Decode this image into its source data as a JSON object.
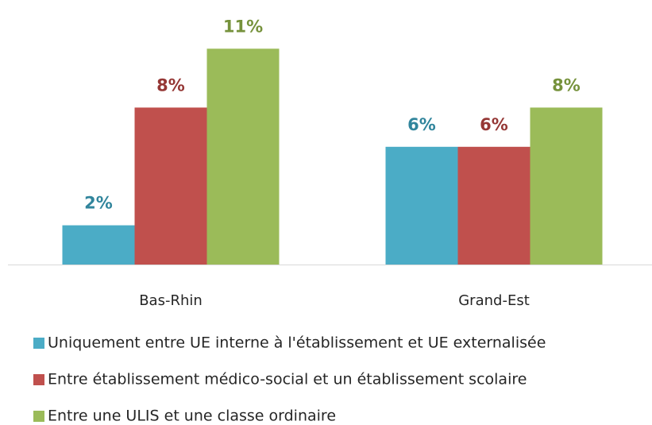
{
  "chart_data": {
    "type": "bar",
    "categories": [
      "Bas-Rhin",
      "Grand-Est"
    ],
    "series": [
      {
        "name": "Uniquement entre UE interne à l'établissement et UE externalisée",
        "color": "#4bacc6",
        "label_color": "#31859c",
        "values": [
          2,
          6
        ],
        "value_labels": [
          "2%",
          "6%"
        ]
      },
      {
        "name": "Entre établissement médico-social et un établissement scolaire",
        "color": "#c0504d",
        "label_color": "#953735",
        "values": [
          8,
          6
        ],
        "value_labels": [
          "8%",
          "6%"
        ]
      },
      {
        "name": "Entre une ULIS et une classe ordinaire",
        "color": "#9bbb59",
        "label_color": "#76923c",
        "values": [
          11,
          8
        ],
        "value_labels": [
          "11%",
          "8%"
        ]
      }
    ],
    "legend": "bottom-left"
  }
}
